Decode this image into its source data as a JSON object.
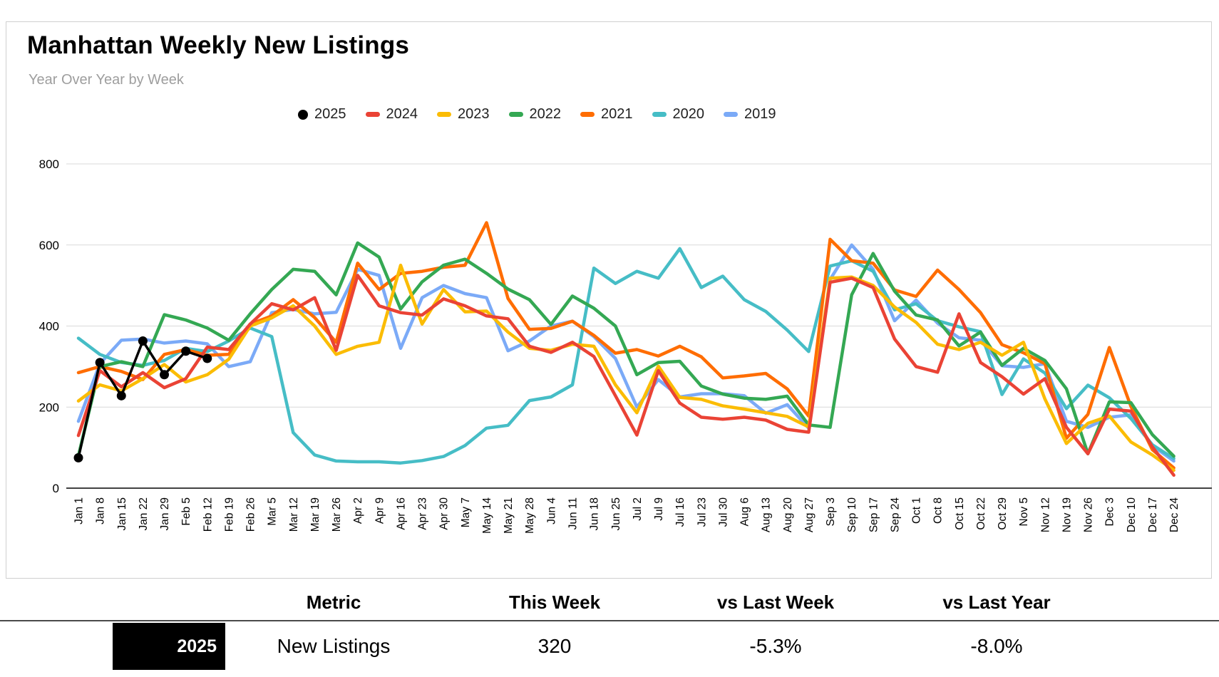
{
  "header": {
    "title": "Manhattan Weekly New Listings",
    "subtitle": "Year Over Year by Week"
  },
  "chart_data": {
    "type": "line",
    "title": "Manhattan Weekly New Listings",
    "subtitle": "Year Over Year by Week",
    "xlabel": "",
    "ylabel": "",
    "ylim": [
      0,
      800
    ],
    "yticks": [
      0,
      200,
      400,
      600,
      800
    ],
    "grid": true,
    "legend_position": "top",
    "categories": [
      "Jan 1",
      "Jan 8",
      "Jan 15",
      "Jan 22",
      "Jan 29",
      "Feb 5",
      "Feb 12",
      "Feb 19",
      "Feb 26",
      "Mar 5",
      "Mar 12",
      "Mar 19",
      "Mar 26",
      "Apr 2",
      "Apr 9",
      "Apr 16",
      "Apr 23",
      "Apr 30",
      "May 7",
      "May 14",
      "May 21",
      "May 28",
      "Jun 4",
      "Jun 11",
      "Jun 18",
      "Jun 25",
      "Jul 2",
      "Jul 9",
      "Jul 16",
      "Jul 23",
      "Jul 30",
      "Aug 6",
      "Aug 13",
      "Aug 20",
      "Aug 27",
      "Sep 3",
      "Sep 10",
      "Sep 17",
      "Sep 24",
      "Oct 1",
      "Oct 8",
      "Oct 15",
      "Oct 22",
      "Oct 29",
      "Nov 5",
      "Nov 12",
      "Nov 19",
      "Nov 26",
      "Dec 3",
      "Dec 10",
      "Dec 17",
      "Dec 24"
    ],
    "series": [
      {
        "name": "2025",
        "color": "#000000",
        "marker": "circle",
        "values": [
          75,
          310,
          228,
          363,
          280,
          338,
          320
        ]
      },
      {
        "name": "2024",
        "color": "#EA4335",
        "marker": "dash",
        "values": [
          130,
          290,
          250,
          285,
          248,
          270,
          348,
          342,
          405,
          455,
          440,
          470,
          340,
          525,
          450,
          433,
          427,
          467,
          450,
          425,
          418,
          350,
          335,
          360,
          325,
          228,
          131,
          290,
          210,
          175,
          170,
          175,
          168,
          145,
          138,
          508,
          518,
          495,
          368,
          300,
          286,
          430,
          310,
          275,
          232,
          270,
          150,
          85,
          195,
          190,
          102,
          32
        ]
      },
      {
        "name": "2023",
        "color": "#FBBC04",
        "marker": "dash",
        "values": [
          215,
          255,
          240,
          270,
          305,
          262,
          280,
          318,
          400,
          420,
          450,
          400,
          330,
          350,
          360,
          550,
          405,
          490,
          435,
          437,
          385,
          345,
          340,
          355,
          350,
          255,
          186,
          301,
          224,
          219,
          203,
          195,
          186,
          177,
          151,
          518,
          521,
          500,
          447,
          409,
          355,
          342,
          360,
          328,
          360,
          220,
          110,
          160,
          178,
          114,
          82,
          44
        ]
      },
      {
        "name": "2022",
        "color": "#34A853",
        "marker": "dash",
        "values": [
          80,
          300,
          312,
          300,
          428,
          415,
          395,
          365,
          430,
          490,
          540,
          535,
          477,
          605,
          570,
          442,
          509,
          550,
          565,
          530,
          491,
          465,
          404,
          474,
          444,
          400,
          280,
          310,
          313,
          252,
          232,
          222,
          219,
          227,
          156,
          150,
          477,
          579,
          486,
          427,
          415,
          351,
          385,
          303,
          345,
          315,
          245,
          85,
          213,
          211,
          132,
          79
        ]
      },
      {
        "name": "2021",
        "color": "#FF6D01",
        "marker": "dash",
        "values": [
          285,
          300,
          288,
          268,
          330,
          342,
          328,
          330,
          405,
          425,
          465,
          421,
          360,
          555,
          490,
          530,
          535,
          545,
          550,
          655,
          468,
          392,
          394,
          412,
          377,
          333,
          342,
          326,
          350,
          324,
          272,
          277,
          283,
          245,
          178,
          614,
          561,
          555,
          489,
          473,
          538,
          490,
          433,
          354,
          334,
          307,
          123,
          182,
          347,
          202,
          95,
          50
        ]
      },
      {
        "name": "2020",
        "color": "#46BDC6",
        "marker": "dash",
        "values": [
          370,
          330,
          310,
          303,
          315,
          345,
          337,
          363,
          395,
          374,
          137,
          82,
          67,
          65,
          65,
          62,
          68,
          78,
          105,
          148,
          155,
          216,
          225,
          255,
          543,
          505,
          535,
          518,
          591,
          495,
          523,
          465,
          436,
          390,
          337,
          548,
          561,
          535,
          440,
          455,
          413,
          398,
          386,
          231,
          319,
          284,
          196,
          254,
          223,
          172,
          107,
          73
        ]
      },
      {
        "name": "2019",
        "color": "#7BAAF7",
        "marker": "dash",
        "values": [
          165,
          307,
          365,
          368,
          358,
          363,
          356,
          300,
          312,
          433,
          441,
          430,
          434,
          540,
          525,
          345,
          470,
          500,
          480,
          470,
          339,
          363,
          400,
          412,
          374,
          320,
          200,
          268,
          225,
          233,
          233,
          228,
          185,
          206,
          148,
          515,
          600,
          540,
          413,
          464,
          407,
          371,
          365,
          302,
          298,
          307,
          165,
          150,
          175,
          181,
          105,
          67
        ]
      }
    ]
  },
  "table": {
    "headers": [
      "Metric",
      "This Week",
      "vs Last Week",
      "vs Last Year"
    ],
    "row": {
      "year": "2025",
      "metric": "New Listings",
      "this_week": "320",
      "vs_last_week": "-5.3%",
      "vs_last_year": "-8.0%"
    }
  }
}
